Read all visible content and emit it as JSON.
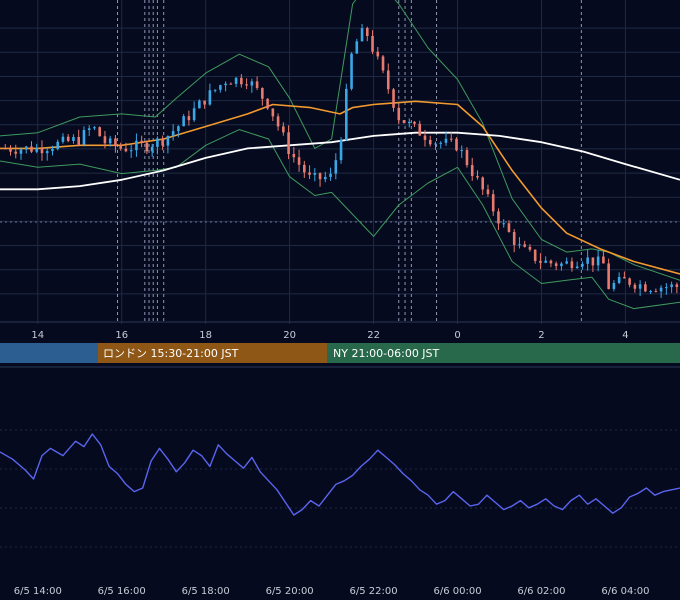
{
  "colors": {
    "background": "#050a1e",
    "grid": "#1e2a44",
    "axis_text": "#c9ccd6",
    "candle_up": "#3aa7e6",
    "candle_down": "#e87a6e",
    "bollinger": "#3f9a5e",
    "ma_short": "#f29a2e",
    "ma_long": "#ffffff",
    "oscillator": "#5a64f0",
    "session_tokyo": "#2d5e92",
    "session_london": "#8e5716",
    "session_ny": "#27694a",
    "dashed_markers": "#8f96b5"
  },
  "sessions": [
    {
      "label": "",
      "color": "#2d5e92"
    },
    {
      "label": "ロンドン 15:30-21:00 JST",
      "color": "#8e5716"
    },
    {
      "label": "NY 21:00-06:00 JST",
      "color": "#27694a"
    }
  ],
  "chart_data": [
    {
      "type": "candlestick",
      "title": "",
      "x_tick_labels": [
        "14",
        "16",
        "18",
        "20",
        "22",
        "0",
        "2",
        "4"
      ],
      "x_tick_hours": [
        14,
        16,
        18,
        20,
        22,
        24,
        26,
        28
      ],
      "x_range_hours": [
        13.1,
        29.3
      ],
      "y_range": [
        0,
        100
      ],
      "grid": true,
      "series": [
        {
          "kind": "ohlc",
          "price_path": [
            [
              13.1,
              54
            ],
            [
              14.0,
              54
            ],
            [
              15.0,
              57
            ],
            [
              15.3,
              61
            ],
            [
              15.6,
              56
            ],
            [
              16.0,
              54
            ],
            [
              16.6,
              55
            ],
            [
              17.0,
              57
            ],
            [
              17.5,
              63
            ],
            [
              18.0,
              70
            ],
            [
              18.5,
              76
            ],
            [
              19.0,
              76
            ],
            [
              19.5,
              68
            ],
            [
              20.0,
              53
            ],
            [
              20.5,
              44
            ],
            [
              21.0,
              45
            ],
            [
              21.2,
              56
            ],
            [
              21.5,
              86
            ],
            [
              21.8,
              92
            ],
            [
              22.0,
              85
            ],
            [
              22.3,
              75
            ],
            [
              22.6,
              64
            ],
            [
              23.0,
              60
            ],
            [
              23.5,
              56
            ],
            [
              24.0,
              55
            ],
            [
              24.5,
              43
            ],
            [
              25.0,
              31
            ],
            [
              25.5,
              22
            ],
            [
              26.0,
              18
            ],
            [
              26.5,
              17
            ],
            [
              27.0,
              19
            ],
            [
              27.5,
              17
            ],
            [
              27.6,
              10
            ],
            [
              28.0,
              12
            ],
            [
              28.5,
              10
            ],
            [
              29.3,
              10
            ]
          ]
        },
        {
          "kind": "line",
          "role": "bollinger_upper",
          "values": [
            [
              13.1,
              58
            ],
            [
              14.0,
              59
            ],
            [
              15.0,
              64
            ],
            [
              16.0,
              65
            ],
            [
              16.8,
              64
            ],
            [
              17.3,
              70
            ],
            [
              18.0,
              78
            ],
            [
              18.8,
              84
            ],
            [
              19.5,
              80
            ],
            [
              20.0,
              70
            ],
            [
              20.6,
              54
            ],
            [
              21.0,
              57
            ],
            [
              21.5,
              100
            ],
            [
              22.0,
              109
            ],
            [
              22.6,
              100
            ],
            [
              23.3,
              86
            ],
            [
              24.0,
              76
            ],
            [
              24.6,
              62
            ],
            [
              25.3,
              38
            ],
            [
              26.0,
              25
            ],
            [
              26.6,
              21
            ],
            [
              27.2,
              22
            ],
            [
              27.6,
              21
            ],
            [
              28.2,
              17
            ],
            [
              29.3,
              12
            ]
          ]
        },
        {
          "kind": "line",
          "role": "bollinger_lower",
          "values": [
            [
              13.1,
              50
            ],
            [
              14.0,
              48
            ],
            [
              15.0,
              49
            ],
            [
              16.0,
              46
            ],
            [
              16.8,
              47
            ],
            [
              17.3,
              48
            ],
            [
              18.0,
              55
            ],
            [
              18.8,
              60
            ],
            [
              19.5,
              57
            ],
            [
              20.0,
              45
            ],
            [
              20.6,
              39
            ],
            [
              21.0,
              40
            ],
            [
              21.5,
              33
            ],
            [
              22.0,
              26
            ],
            [
              22.6,
              36
            ],
            [
              23.3,
              43
            ],
            [
              24.0,
              48
            ],
            [
              24.6,
              36
            ],
            [
              25.3,
              18
            ],
            [
              26.0,
              11
            ],
            [
              26.6,
              12
            ],
            [
              27.2,
              13
            ],
            [
              27.6,
              6
            ],
            [
              28.2,
              3
            ],
            [
              29.3,
              5
            ]
          ]
        },
        {
          "kind": "line",
          "role": "moving_average_short",
          "values": [
            [
              13.1,
              54
            ],
            [
              14.0,
              54
            ],
            [
              15.0,
              55
            ],
            [
              16.0,
              55
            ],
            [
              17.0,
              57
            ],
            [
              18.0,
              61
            ],
            [
              19.0,
              65
            ],
            [
              19.6,
              68
            ],
            [
              20.5,
              67
            ],
            [
              21.2,
              65
            ],
            [
              21.5,
              67
            ],
            [
              22.0,
              68
            ],
            [
              23.0,
              69
            ],
            [
              24.0,
              68
            ],
            [
              24.6,
              61
            ],
            [
              25.3,
              47
            ],
            [
              26.0,
              35
            ],
            [
              26.6,
              27
            ],
            [
              27.4,
              22
            ],
            [
              28.2,
              18
            ],
            [
              29.3,
              14
            ]
          ]
        },
        {
          "kind": "line",
          "role": "moving_average_long",
          "values": [
            [
              13.1,
              41
            ],
            [
              14.0,
              41
            ],
            [
              15.0,
              42
            ],
            [
              16.0,
              44
            ],
            [
              17.0,
              47
            ],
            [
              18.0,
              51
            ],
            [
              19.0,
              54
            ],
            [
              20.0,
              55
            ],
            [
              21.0,
              56
            ],
            [
              22.0,
              58
            ],
            [
              23.0,
              59
            ],
            [
              24.0,
              59
            ],
            [
              25.0,
              58
            ],
            [
              26.0,
              56
            ],
            [
              27.0,
              53
            ],
            [
              28.0,
              49
            ],
            [
              29.3,
              44
            ]
          ]
        }
      ],
      "vertical_markers_hours": [
        15.9,
        16.55,
        16.65,
        16.75,
        16.85,
        17.0,
        22.6,
        22.75,
        22.9,
        23.5,
        26.95
      ]
    },
    {
      "type": "line",
      "title": "",
      "x_tick_labels": [
        "6/5 14:00",
        "6/5 16:00",
        "6/5 18:00",
        "6/5 20:00",
        "6/5 22:00",
        "6/6 00:00",
        "6/6 02:00",
        "6/6 04:00"
      ],
      "x_tick_hours": [
        14,
        16,
        18,
        20,
        22,
        24,
        26,
        28
      ],
      "x_range_hours": [
        13.1,
        29.3
      ],
      "y_range": [
        0,
        100
      ],
      "grid": true,
      "series": [
        {
          "name": "",
          "values": [
            [
              13.1,
              60
            ],
            [
              13.4,
              56
            ],
            [
              13.7,
              50
            ],
            [
              13.9,
              45
            ],
            [
              14.1,
              58
            ],
            [
              14.3,
              62
            ],
            [
              14.6,
              58
            ],
            [
              14.9,
              66
            ],
            [
              15.1,
              63
            ],
            [
              15.3,
              70
            ],
            [
              15.5,
              64
            ],
            [
              15.7,
              52
            ],
            [
              15.9,
              48
            ],
            [
              16.1,
              42
            ],
            [
              16.3,
              38
            ],
            [
              16.5,
              40
            ],
            [
              16.7,
              55
            ],
            [
              16.9,
              62
            ],
            [
              17.1,
              56
            ],
            [
              17.3,
              49
            ],
            [
              17.5,
              54
            ],
            [
              17.7,
              61
            ],
            [
              17.9,
              58
            ],
            [
              18.1,
              52
            ],
            [
              18.3,
              64
            ],
            [
              18.5,
              59
            ],
            [
              18.7,
              55
            ],
            [
              18.9,
              51
            ],
            [
              19.1,
              57
            ],
            [
              19.3,
              49
            ],
            [
              19.5,
              44
            ],
            [
              19.7,
              39
            ],
            [
              19.9,
              32
            ],
            [
              20.1,
              25
            ],
            [
              20.3,
              28
            ],
            [
              20.5,
              33
            ],
            [
              20.7,
              30
            ],
            [
              20.9,
              36
            ],
            [
              21.1,
              42
            ],
            [
              21.3,
              44
            ],
            [
              21.5,
              47
            ],
            [
              21.7,
              52
            ],
            [
              21.9,
              56
            ],
            [
              22.1,
              61
            ],
            [
              22.3,
              57
            ],
            [
              22.5,
              53
            ],
            [
              22.7,
              48
            ],
            [
              22.9,
              44
            ],
            [
              23.1,
              39
            ],
            [
              23.3,
              36
            ],
            [
              23.5,
              31
            ],
            [
              23.7,
              33
            ],
            [
              23.9,
              38
            ],
            [
              24.1,
              34
            ],
            [
              24.3,
              30
            ],
            [
              24.5,
              31
            ],
            [
              24.7,
              36
            ],
            [
              24.9,
              32
            ],
            [
              25.1,
              28
            ],
            [
              25.3,
              30
            ],
            [
              25.5,
              33
            ],
            [
              25.7,
              29
            ],
            [
              25.9,
              31
            ],
            [
              26.1,
              34
            ],
            [
              26.3,
              30
            ],
            [
              26.5,
              28
            ],
            [
              26.7,
              33
            ],
            [
              26.9,
              36
            ],
            [
              27.1,
              31
            ],
            [
              27.3,
              34
            ],
            [
              27.5,
              30
            ],
            [
              27.7,
              26
            ],
            [
              27.9,
              29
            ],
            [
              28.1,
              35
            ],
            [
              28.3,
              37
            ],
            [
              28.5,
              40
            ],
            [
              28.7,
              36
            ],
            [
              28.9,
              38
            ],
            [
              29.1,
              39
            ],
            [
              29.3,
              40
            ]
          ]
        }
      ]
    }
  ]
}
